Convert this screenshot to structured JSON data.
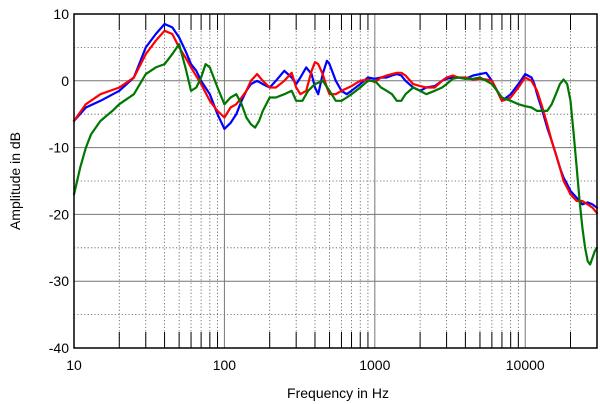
{
  "chart_data": {
    "type": "line",
    "title": "",
    "xlabel": "Frequency in Hz",
    "ylabel": "Amplitude in dB",
    "xscale": "log",
    "xlim": [
      10,
      30000
    ],
    "ylim": [
      -40,
      10
    ],
    "grid": true,
    "legend": "none",
    "xtick_labels": [
      "10",
      "100",
      "1000",
      "10000"
    ],
    "xtick_values": [
      10,
      100,
      1000,
      10000
    ],
    "ytick_labels": [
      "10",
      "0",
      "-10",
      "-20",
      "-30",
      "-40"
    ],
    "ytick_values": [
      10,
      0,
      -10,
      -20,
      -30,
      -40
    ],
    "series": [
      {
        "color": "#0000ff",
        "x": [
          10,
          12,
          15,
          20,
          25,
          30,
          35,
          40,
          45,
          50,
          55,
          60,
          65,
          70,
          80,
          90,
          100,
          110,
          120,
          130,
          140,
          150,
          165,
          180,
          200,
          220,
          250,
          280,
          300,
          320,
          350,
          380,
          400,
          420,
          450,
          480,
          500,
          550,
          600,
          650,
          700,
          800,
          900,
          1000,
          1100,
          1200,
          1300,
          1400,
          1500,
          1600,
          1800,
          2000,
          2200,
          2500,
          2800,
          3000,
          3300,
          3600,
          4000,
          4500,
          5000,
          5500,
          6000,
          6500,
          7000,
          7500,
          8000,
          9000,
          10000,
          11000,
          11500,
          12000,
          13000,
          14000,
          15000,
          16000,
          17000,
          18000,
          19000,
          20000,
          22000,
          24000,
          26000,
          28000,
          30000
        ],
        "y": [
          -6,
          -4,
          -3,
          -1.5,
          0.5,
          5,
          7,
          8.5,
          8,
          6.5,
          4.5,
          2.5,
          1.5,
          0,
          -2,
          -5,
          -7.2,
          -6.3,
          -5,
          -3,
          -1.5,
          -0.5,
          0,
          -0.5,
          -1,
          0,
          1.5,
          0.5,
          -0.5,
          0.5,
          2,
          1,
          -1,
          -2,
          1,
          3,
          2.5,
          0,
          -1.5,
          -2,
          -1.5,
          -0.5,
          0.5,
          0.3,
          0.5,
          0.5,
          0.8,
          1,
          0.8,
          0,
          -1,
          -1.5,
          -1,
          -0.8,
          0,
          0.3,
          0.5,
          0.5,
          0.3,
          0.8,
          1,
          1.2,
          0,
          -1.5,
          -3,
          -2.5,
          -2,
          -0.5,
          1,
          0.5,
          -0.5,
          -2,
          -4.5,
          -7,
          -9,
          -11,
          -13,
          -14.5,
          -15.5,
          -16.5,
          -17.5,
          -18.5,
          -18.2,
          -18.5,
          -19
        ]
      },
      {
        "color": "#ff0000",
        "x": [
          10,
          12,
          15,
          20,
          25,
          30,
          35,
          40,
          45,
          50,
          55,
          60,
          70,
          80,
          90,
          100,
          110,
          120,
          130,
          140,
          150,
          165,
          180,
          200,
          220,
          250,
          280,
          300,
          320,
          350,
          380,
          400,
          420,
          450,
          480,
          500,
          550,
          600,
          700,
          800,
          900,
          1000,
          1100,
          1200,
          1300,
          1400,
          1500,
          1600,
          1800,
          2000,
          2200,
          2500,
          2800,
          3000,
          3300,
          3600,
          4000,
          4500,
          5000,
          5500,
          6000,
          6500,
          7000,
          7500,
          8000,
          9000,
          10000,
          11000,
          12000,
          13000,
          14000,
          15000,
          16000,
          17000,
          18000,
          19000,
          20000,
          22000,
          24000,
          26000,
          28000,
          30000
        ],
        "y": [
          -6,
          -3.5,
          -2,
          -1,
          0.5,
          4,
          6,
          7.5,
          7,
          5,
          3.5,
          2,
          -0.5,
          -3,
          -4.5,
          -5.5,
          -4,
          -3.5,
          -2.5,
          -1.5,
          0,
          1,
          0,
          -1,
          -1,
          0,
          1.2,
          -1,
          -2,
          -1.5,
          1.5,
          2.8,
          2.5,
          1,
          -1,
          -2,
          -2,
          -1.5,
          -0.8,
          0,
          0.2,
          -0.2,
          0.5,
          0.8,
          1,
          1.2,
          1.2,
          0.8,
          -0.5,
          -0.8,
          -1,
          -1,
          0,
          0.5,
          0.8,
          0.5,
          0.5,
          0.2,
          0.3,
          0.2,
          0,
          -1.5,
          -3,
          -2.8,
          -2.5,
          -1,
          0.5,
          0,
          -1.5,
          -4,
          -6.5,
          -9,
          -11,
          -13,
          -15,
          -16,
          -17,
          -18,
          -18,
          -18.5,
          -19,
          -19.8
        ]
      },
      {
        "color": "#007700",
        "x": [
          10,
          11,
          12,
          13,
          15,
          18,
          20,
          25,
          30,
          35,
          40,
          45,
          50,
          55,
          60,
          65,
          70,
          75,
          80,
          90,
          100,
          110,
          120,
          130,
          140,
          150,
          160,
          170,
          180,
          200,
          220,
          250,
          280,
          300,
          330,
          360,
          400,
          450,
          500,
          550,
          600,
          650,
          700,
          800,
          900,
          1000,
          1100,
          1200,
          1300,
          1400,
          1500,
          1600,
          1800,
          2000,
          2200,
          2500,
          2800,
          3000,
          3300,
          3600,
          4000,
          4500,
          5000,
          5500,
          6000,
          6500,
          7000,
          8000,
          9000,
          10000,
          11000,
          12000,
          13000,
          14000,
          15000,
          16000,
          17000,
          18000,
          19000,
          20000,
          21000,
          22000,
          23000,
          24000,
          25000,
          26000,
          27000,
          28000,
          29000,
          30000
        ],
        "y": [
          -17,
          -13,
          -10,
          -8,
          -6,
          -4.5,
          -3.5,
          -2,
          1,
          2,
          2.5,
          4,
          5.5,
          2,
          -1.5,
          -1,
          0.5,
          2.5,
          2,
          -1,
          -3.5,
          -2.5,
          -2,
          -3.5,
          -5.5,
          -6.5,
          -7,
          -6,
          -4.5,
          -2.5,
          -2.5,
          -2,
          -1.5,
          -3,
          -3,
          -1.5,
          -0.5,
          0,
          -1.5,
          -3,
          -3,
          -2.5,
          -2,
          -1,
          0,
          0,
          -1,
          -1.5,
          -2,
          -3,
          -3,
          -2,
          -1,
          -1.5,
          -2,
          -1.5,
          -1,
          -0.5,
          0.3,
          0.5,
          0.3,
          0.3,
          0.5,
          0,
          -0.5,
          -1.5,
          -2.5,
          -3,
          -3.5,
          -3.8,
          -4,
          -4.5,
          -4.5,
          -4.5,
          -3.5,
          -2,
          -0.5,
          0.2,
          -0.5,
          -3,
          -8,
          -13,
          -18,
          -22,
          -25,
          -27,
          -27.5,
          -26.5,
          -25.5,
          -25
        ]
      }
    ]
  }
}
